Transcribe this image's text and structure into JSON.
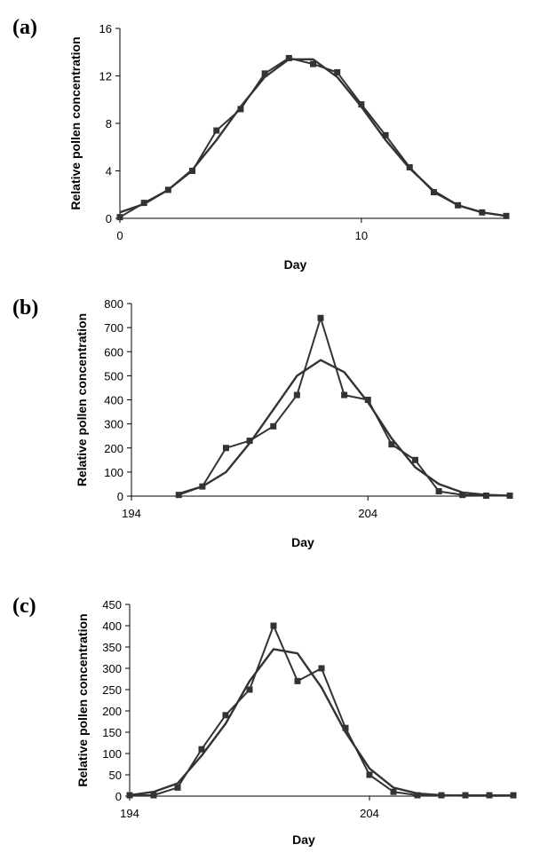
{
  "chart_data": [
    {
      "type": "line",
      "panel_label": "(a)",
      "xlabel": "Day",
      "ylabel": "Relative pollen concentration",
      "xlim": [
        0,
        16
      ],
      "ylim": [
        0,
        16
      ],
      "xticks": [
        0,
        10
      ],
      "xtick_labels": [
        "0",
        "10"
      ],
      "yticks": [
        0,
        4,
        8,
        12,
        16
      ],
      "ytick_labels": [
        "0",
        "4",
        "8",
        "12",
        "16"
      ],
      "grid": false,
      "colors": {
        "series": "#333333"
      },
      "series": [
        {
          "markers": true,
          "x": [
            0,
            1,
            2,
            3,
            4,
            5,
            6,
            7,
            8,
            9,
            10,
            11,
            12,
            13,
            14,
            15,
            16
          ],
          "values": [
            0.1,
            1.3,
            2.4,
            4.0,
            7.4,
            9.2,
            12.2,
            13.5,
            13.0,
            12.3,
            9.6,
            7.0,
            4.3,
            2.2,
            1.1,
            0.5,
            0.2
          ]
        },
        {
          "markers": false,
          "x": [
            0,
            1,
            2,
            3,
            4,
            5,
            6,
            7,
            8,
            9,
            10,
            11,
            12,
            13,
            14,
            15,
            16
          ],
          "values": [
            0.5,
            1.2,
            2.4,
            4.1,
            6.6,
            9.4,
            11.9,
            13.4,
            13.4,
            11.9,
            9.4,
            6.6,
            4.2,
            2.3,
            1.1,
            0.5,
            0.2
          ]
        }
      ]
    },
    {
      "type": "line",
      "panel_label": "(b)",
      "xlabel": "Day",
      "ylabel": "Relative pollen concentration",
      "xlim": [
        194,
        210
      ],
      "ylim": [
        0,
        800
      ],
      "xticks": [
        194,
        204
      ],
      "xtick_labels": [
        "194",
        "204"
      ],
      "yticks": [
        0,
        100,
        200,
        300,
        400,
        500,
        600,
        700,
        800
      ],
      "ytick_labels": [
        "0",
        "100",
        "200",
        "300",
        "400",
        "500",
        "600",
        "700",
        "800"
      ],
      "grid": false,
      "colors": {
        "series": "#333333"
      },
      "series": [
        {
          "markers": true,
          "x": [
            196,
            197,
            198,
            199,
            200,
            201,
            202,
            203,
            204,
            205,
            206,
            207,
            208,
            209,
            210
          ],
          "values": [
            5,
            40,
            200,
            230,
            290,
            420,
            740,
            420,
            400,
            215,
            150,
            20,
            5,
            2,
            2
          ]
        },
        {
          "markers": false,
          "x": [
            196,
            197,
            198,
            199,
            200,
            201,
            202,
            203,
            204,
            205,
            206,
            207,
            208,
            209,
            210
          ],
          "values": [
            10,
            40,
            100,
            220,
            360,
            500,
            565,
            515,
            390,
            240,
            120,
            50,
            15,
            5,
            2
          ]
        }
      ]
    },
    {
      "type": "line",
      "panel_label": "(c)",
      "xlabel": "Day",
      "ylabel": "Relative pollen concentration",
      "xlim": [
        194,
        210
      ],
      "ylim": [
        0,
        450
      ],
      "xticks": [
        194,
        204
      ],
      "xtick_labels": [
        "194",
        "204"
      ],
      "yticks": [
        0,
        50,
        100,
        150,
        200,
        250,
        300,
        350,
        400,
        450
      ],
      "ytick_labels": [
        "0",
        "50",
        "100",
        "150",
        "200",
        "250",
        "300",
        "350",
        "400",
        "450"
      ],
      "grid": false,
      "colors": {
        "series": "#333333"
      },
      "series": [
        {
          "markers": true,
          "x": [
            194,
            195,
            196,
            197,
            198,
            199,
            200,
            201,
            202,
            203,
            204,
            205,
            206,
            207,
            208,
            209,
            210
          ],
          "values": [
            2,
            2,
            20,
            110,
            190,
            250,
            400,
            270,
            300,
            160,
            50,
            10,
            2,
            2,
            2,
            2,
            2
          ]
        },
        {
          "markers": false,
          "x": [
            194,
            195,
            196,
            197,
            198,
            199,
            200,
            201,
            202,
            203,
            204,
            205,
            206,
            207,
            208,
            209,
            210
          ],
          "values": [
            2,
            10,
            30,
            95,
            170,
            270,
            345,
            335,
            255,
            150,
            65,
            20,
            6,
            2,
            1,
            1,
            1
          ]
        }
      ]
    }
  ]
}
